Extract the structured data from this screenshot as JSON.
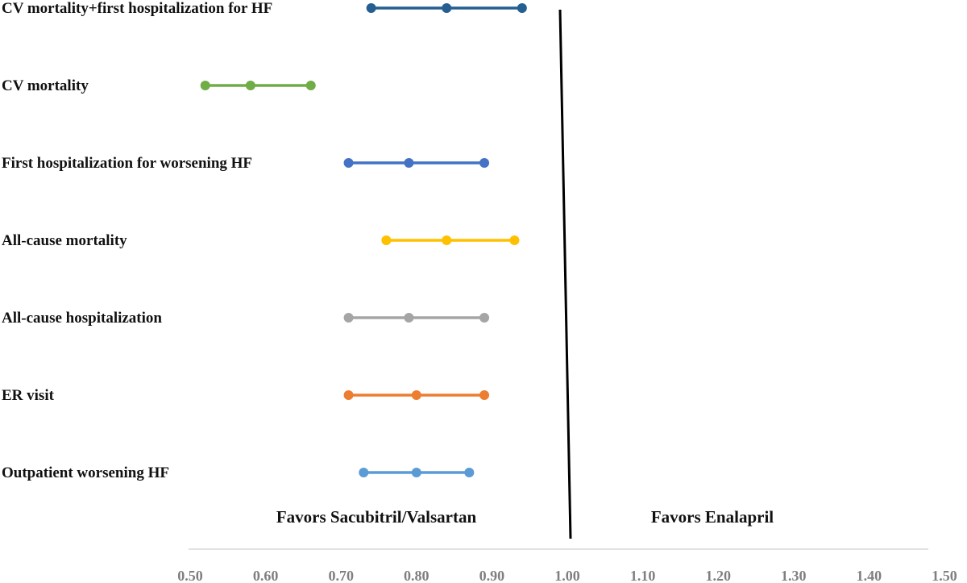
{
  "chart_data": {
    "type": "forest",
    "title": "",
    "xlabel": "",
    "ylabel": "",
    "xlim": [
      0.5,
      1.5
    ],
    "x_ticks": [
      "0.50",
      "0.60",
      "0.70",
      "0.80",
      "0.90",
      "1.00",
      "1.10",
      "1.20",
      "1.30",
      "1.40",
      "1.50"
    ],
    "x_tick_values": [
      0.5,
      0.6,
      0.7,
      0.8,
      0.9,
      1.0,
      1.1,
      1.2,
      1.3,
      1.4,
      1.5
    ],
    "reference_line": 1.0,
    "favor_left": "Favors Sacubitril/Valsartan",
    "favor_right": "Favors Enalapril",
    "grid": false,
    "series": [
      {
        "name": "CV mortality+first  hospitalization for HF",
        "lower": 0.74,
        "estimate": 0.84,
        "upper": 0.94,
        "color": "#255e91"
      },
      {
        "name": "CV mortality",
        "lower": 0.52,
        "estimate": 0.58,
        "upper": 0.66,
        "color": "#70ad47"
      },
      {
        "name": "First hospitalization  for worsening HF",
        "lower": 0.71,
        "estimate": 0.79,
        "upper": 0.89,
        "color": "#4472c4"
      },
      {
        "name": "All-cause mortality",
        "lower": 0.76,
        "estimate": 0.84,
        "upper": 0.93,
        "color": "#ffc000"
      },
      {
        "name": "All-cause hospitalization",
        "lower": 0.71,
        "estimate": 0.79,
        "upper": 0.89,
        "color": "#a5a5a5"
      },
      {
        "name": "ER visit",
        "lower": 0.71,
        "estimate": 0.8,
        "upper": 0.89,
        "color": "#ed7d31"
      },
      {
        "name": "Outpatient  worsening HF",
        "lower": 0.73,
        "estimate": 0.8,
        "upper": 0.87,
        "color": "#5b9bd5"
      }
    ]
  }
}
